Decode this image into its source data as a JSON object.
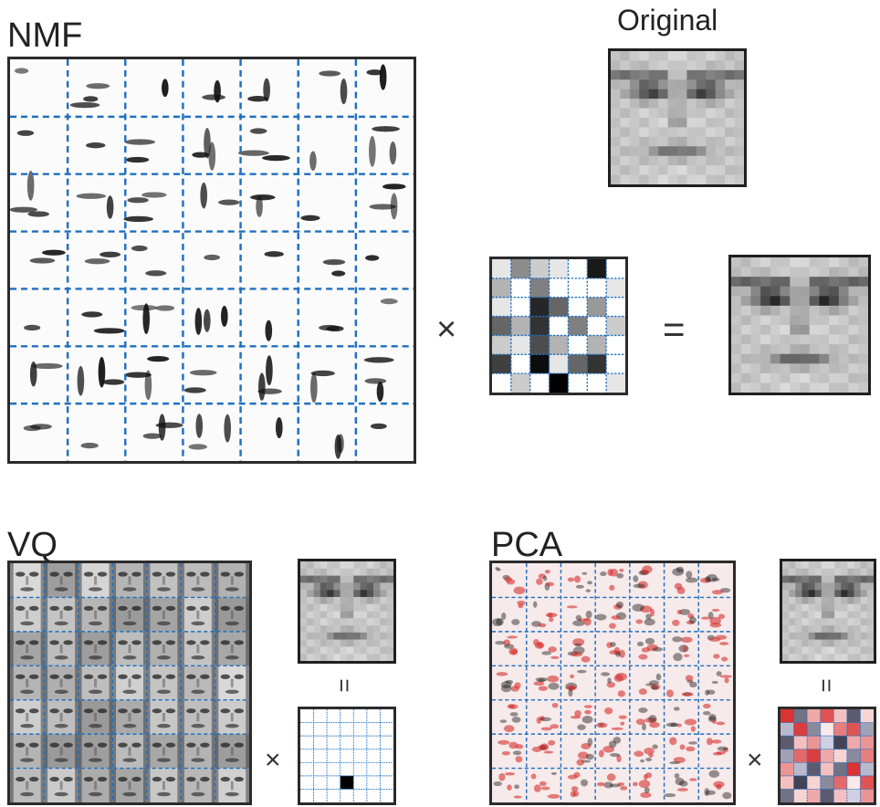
{
  "labels": {
    "nmf": "NMF",
    "vq": "VQ",
    "pca": "PCA",
    "original": "Original"
  },
  "operators": {
    "times": "×",
    "equals": "=",
    "equals_rotated": "="
  },
  "grid_size": 7,
  "colors": {
    "grid_line": "#1f6fc0",
    "border": "#2b2b2b",
    "pca_positive": "#d32f2f"
  },
  "nmf_encoding": [
    [
      0.1,
      0.45,
      0.2,
      0.1,
      0.0,
      0.9,
      0.0
    ],
    [
      0.3,
      0.0,
      0.5,
      0.0,
      0.0,
      0.0,
      0.1
    ],
    [
      0.1,
      0.0,
      0.85,
      0.6,
      0.0,
      0.4,
      0.0
    ],
    [
      0.6,
      0.3,
      0.8,
      0.0,
      0.5,
      0.0,
      0.2
    ],
    [
      0.2,
      0.1,
      0.7,
      0.3,
      0.0,
      0.3,
      0.0
    ],
    [
      0.75,
      0.0,
      0.95,
      0.1,
      0.6,
      0.8,
      0.0
    ],
    [
      0.0,
      0.2,
      0.0,
      1.0,
      0.0,
      0.0,
      0.1
    ]
  ],
  "vq_encoding_active": [
    5,
    3
  ],
  "pca_encoding": [
    [
      0.95,
      -0.6,
      0.4,
      0.8,
      0.3,
      -0.7,
      0.2
    ],
    [
      -0.3,
      0.9,
      -0.5,
      0.1,
      0.6,
      0.8,
      -0.4
    ],
    [
      -0.7,
      0.3,
      0.5,
      -0.2,
      -0.8,
      0.4,
      0.5
    ],
    [
      -0.4,
      0.7,
      0.9,
      0.4,
      0.2,
      -0.5,
      0.6
    ],
    [
      0.5,
      -0.3,
      -0.7,
      0.3,
      -0.6,
      0.95,
      -0.3
    ],
    [
      0.3,
      -0.8,
      0.2,
      -0.5,
      0.7,
      0.1,
      0.8
    ],
    [
      -0.6,
      0.2,
      0.4,
      -0.7,
      0.3,
      -0.2,
      0.5
    ]
  ]
}
